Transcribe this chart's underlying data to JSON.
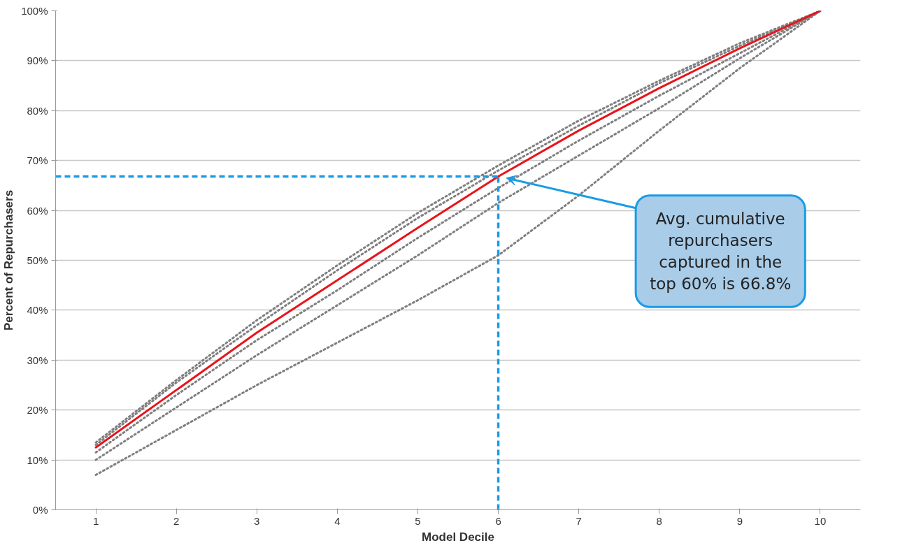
{
  "chart_data": {
    "type": "line",
    "xlabel": "Model Decile",
    "ylabel": "Percent of Repurchasers",
    "categories": [
      "1",
      "2",
      "3",
      "4",
      "5",
      "6",
      "7",
      "8",
      "9",
      "10"
    ],
    "ylim": [
      0,
      100
    ],
    "yticks": [
      {
        "value": 0,
        "label": "0%"
      },
      {
        "value": 10,
        "label": "10%"
      },
      {
        "value": 20,
        "label": "20%"
      },
      {
        "value": 30,
        "label": "30%"
      },
      {
        "value": 40,
        "label": "40%"
      },
      {
        "value": 50,
        "label": "50%"
      },
      {
        "value": 60,
        "label": "60%"
      },
      {
        "value": 70,
        "label": "70%"
      },
      {
        "value": 80,
        "label": "80%"
      },
      {
        "value": 90,
        "label": "90%"
      },
      {
        "value": 100,
        "label": "100%"
      }
    ],
    "grid": "y",
    "series": [
      {
        "color": "#7f7f7f",
        "line_style": "dotted",
        "values": [
          7,
          16,
          25,
          33.5,
          42,
          51,
          63,
          76,
          88.5,
          100
        ]
      },
      {
        "color": "#7f7f7f",
        "line_style": "dotted",
        "values": [
          10,
          20.5,
          31,
          41,
          51,
          61.5,
          71,
          80.5,
          90.5,
          100
        ]
      },
      {
        "color": "#7f7f7f",
        "line_style": "dotted",
        "values": [
          11.5,
          23,
          34,
          44,
          54.5,
          64.5,
          74,
          83,
          91.5,
          100
        ]
      },
      {
        "color": "#7f7f7f",
        "line_style": "dotted",
        "values": [
          13,
          25.5,
          37,
          48,
          58.5,
          68,
          77,
          85.5,
          93,
          100
        ]
      },
      {
        "color": "#7f7f7f",
        "line_style": "dotted",
        "values": [
          13.5,
          26,
          38,
          49,
          59.5,
          69,
          78,
          86,
          93.5,
          100
        ]
      },
      {
        "color": "#e8141b",
        "line_style": "solid",
        "values": [
          12.5,
          24,
          35.5,
          46,
          56.5,
          66.8,
          76,
          84.5,
          92.5,
          100
        ]
      }
    ],
    "ref_lines": [
      {
        "axis": "y",
        "value": 66.8,
        "color": "#1a9be6",
        "line_style": "dashed"
      },
      {
        "axis": "x",
        "value": "6",
        "color": "#1a9be6",
        "line_style": "dashed"
      }
    ],
    "annotations": [
      "Avg. cumulative\nrepurchasers\ncaptured in the\ntop 60% is 66.8%"
    ]
  }
}
